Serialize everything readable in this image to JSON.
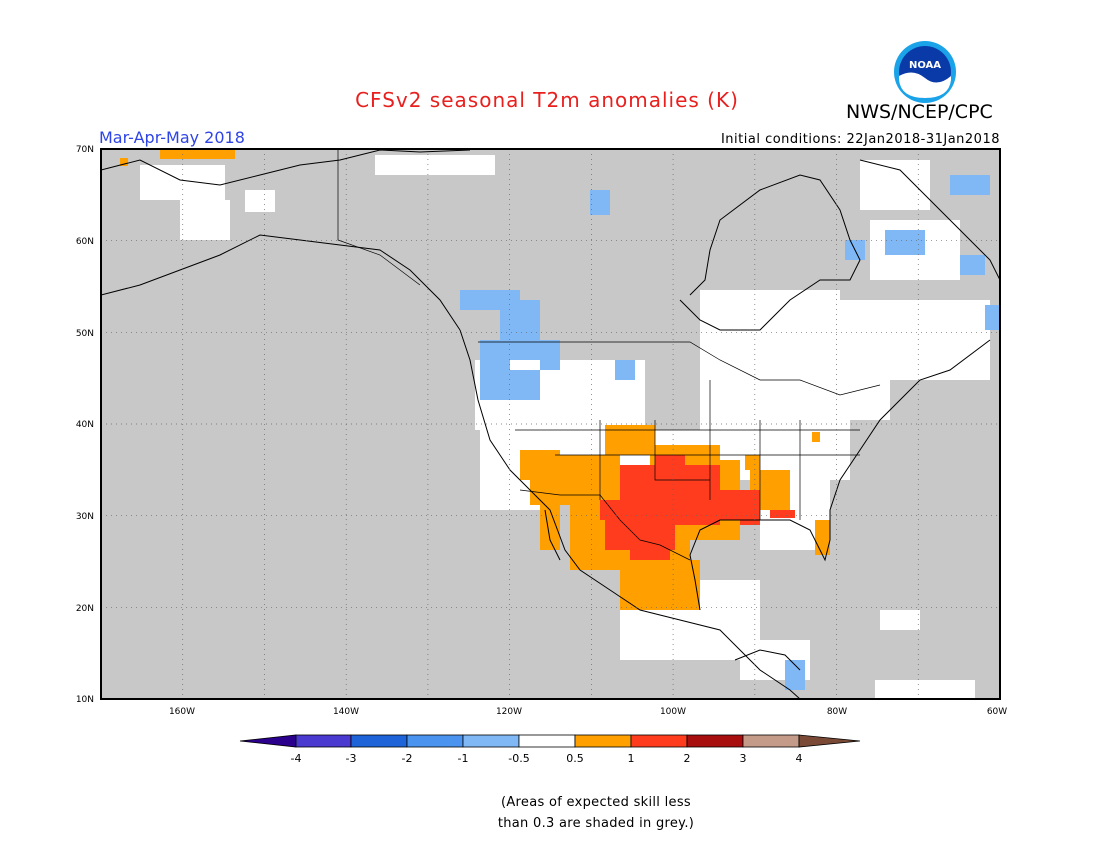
{
  "header": {
    "title": "CFSv2 seasonal T2m anomalies (K)",
    "organization": "NWS/NCEP/CPC",
    "logo_text": "NOAA",
    "period": "Mar-Apr-May 2018",
    "initial_conditions": "Initial conditions: 22Jan2018-31Jan2018"
  },
  "map": {
    "projection": "lat-lon",
    "lon_range": [
      -170,
      -60
    ],
    "lat_range": [
      10,
      70
    ],
    "ocean_color": "#c8c8c8",
    "gridlines": "dotted",
    "lat_ticks": [
      "10N",
      "20N",
      "30N",
      "40N",
      "50N",
      "60N",
      "70N"
    ],
    "lon_ticks": [
      "160W",
      "140W",
      "120W",
      "100W",
      "80W",
      "60W"
    ]
  },
  "legend": {
    "tick_labels": [
      "-4",
      "-3",
      "-2",
      "-1",
      "-0.5",
      "0.5",
      "1",
      "2",
      "3",
      "4"
    ],
    "colors": [
      "#2b008c",
      "#4a3ad0",
      "#1e64d8",
      "#4a94f0",
      "#7fb8f5",
      "#ffffff",
      "#ff9f00",
      "#ff3c1e",
      "#a80e0e",
      "#c49a88",
      "#7a4a36"
    ]
  },
  "footnote": {
    "line1": "(Areas of expected skill less",
    "line2": "than 0.3 are shaded in grey.)"
  }
}
